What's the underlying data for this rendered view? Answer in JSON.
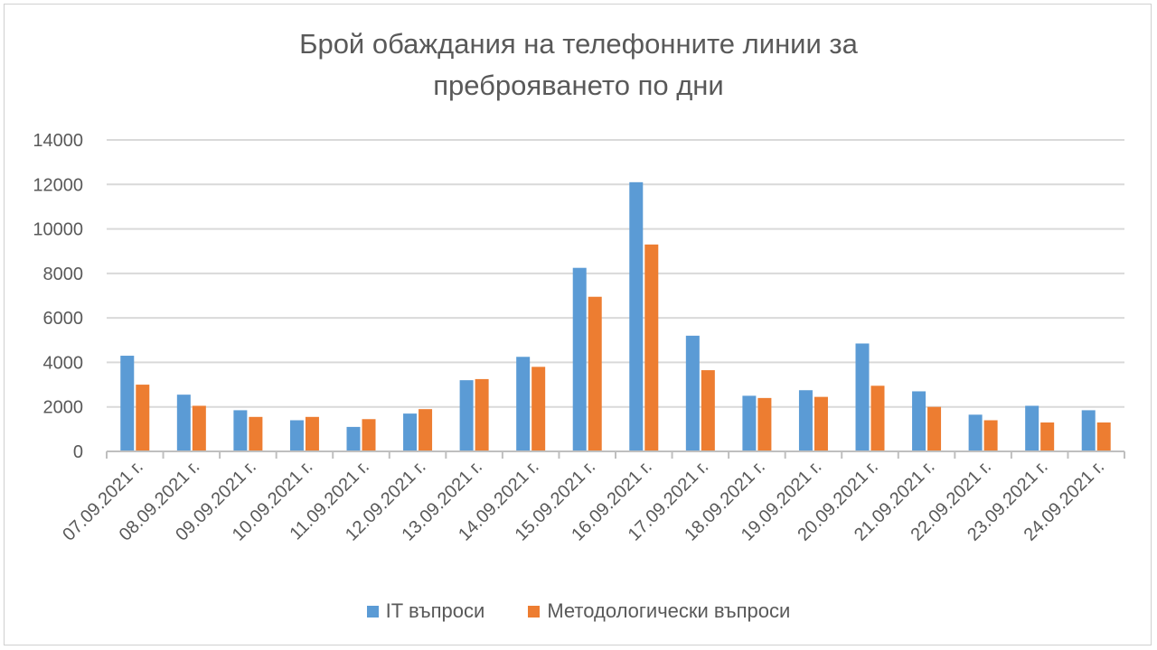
{
  "chart_data": {
    "type": "bar",
    "title_lines": [
      "Брой обаждания на телефонните линии за",
      "преброяването по дни"
    ],
    "xlabel": "",
    "ylabel": "",
    "ylim": [
      0,
      14000
    ],
    "yticks": [
      0,
      2000,
      4000,
      6000,
      8000,
      10000,
      12000,
      14000
    ],
    "grid": true,
    "legend_position": "bottom",
    "categories": [
      "07.09.2021 г.",
      "08.09.2021 г.",
      "09.09.2021 г.",
      "10.09.2021 г.",
      "11.09.2021 г.",
      "12.09.2021 г.",
      "13.09.2021 г.",
      "14.09.2021 г.",
      "15.09.2021 г.",
      "16.09.2021 г.",
      "17.09.2021 г.",
      "18.09.2021 г.",
      "19.09.2021 г.",
      "20.09.2021 г.",
      "21.09.2021 г.",
      "22.09.2021 г.",
      "23.09.2021 г.",
      "24.09.2021 г."
    ],
    "series": [
      {
        "name": "IT въпроси",
        "color": "#5b9bd5",
        "values": [
          4300,
          2550,
          1850,
          1400,
          1100,
          1700,
          3200,
          4250,
          8250,
          12100,
          5200,
          2500,
          2750,
          4850,
          2700,
          1650,
          2050,
          1850
        ]
      },
      {
        "name": "Методологически въпроси",
        "color": "#ed7d31",
        "values": [
          3000,
          2050,
          1550,
          1550,
          1450,
          1900,
          3250,
          3800,
          6950,
          9300,
          3650,
          2400,
          2450,
          2950,
          2000,
          1400,
          1300,
          1300
        ]
      }
    ]
  }
}
